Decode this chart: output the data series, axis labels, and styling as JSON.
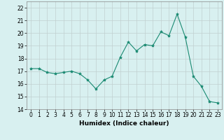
{
  "x": [
    0,
    1,
    2,
    3,
    4,
    5,
    6,
    7,
    8,
    9,
    10,
    11,
    12,
    13,
    14,
    15,
    16,
    17,
    18,
    19,
    20,
    21,
    22,
    23
  ],
  "y": [
    17.2,
    17.2,
    16.9,
    16.8,
    16.9,
    17.0,
    16.8,
    16.3,
    15.6,
    16.3,
    16.6,
    18.1,
    19.3,
    18.6,
    19.1,
    19.0,
    20.1,
    19.8,
    21.5,
    19.7,
    16.6,
    15.8,
    14.6,
    14.5
  ],
  "line_color": "#1a8a72",
  "marker": "*",
  "marker_size": 3,
  "bg_color": "#d8f0f0",
  "grid_color": "#c0d0d0",
  "xlabel": "Humidex (Indice chaleur)",
  "ylim": [
    14,
    22.5
  ],
  "xlim": [
    -0.5,
    23.5
  ],
  "yticks": [
    14,
    15,
    16,
    17,
    18,
    19,
    20,
    21,
    22
  ],
  "xticks": [
    0,
    1,
    2,
    3,
    4,
    5,
    6,
    7,
    8,
    9,
    10,
    11,
    12,
    13,
    14,
    15,
    16,
    17,
    18,
    19,
    20,
    21,
    22,
    23
  ],
  "label_fontsize": 6.5,
  "tick_fontsize": 5.5
}
